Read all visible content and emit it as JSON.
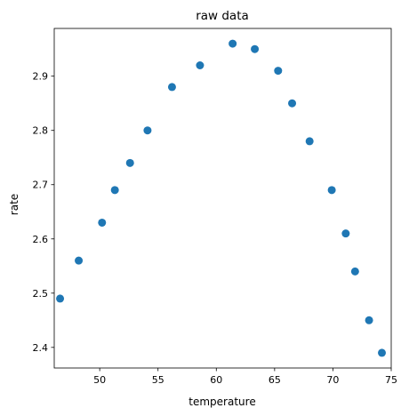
{
  "chart_data": {
    "type": "scatter",
    "title": "raw data",
    "xlabel": "temperature",
    "ylabel": "rate",
    "xlim": [
      46.1,
      75.0
    ],
    "ylim": [
      2.362,
      2.988
    ],
    "xticks": [
      50,
      55,
      60,
      65,
      70,
      75
    ],
    "yticks": [
      2.4,
      2.5,
      2.6,
      2.7,
      2.8,
      2.9
    ],
    "x_tick_labels": [
      "50",
      "55",
      "60",
      "65",
      "70",
      "75"
    ],
    "y_tick_labels": [
      "2.4",
      "2.5",
      "2.6",
      "2.7",
      "2.8",
      "2.9"
    ],
    "grid": false,
    "marker_color": "#1f77b4",
    "series": [
      {
        "x": [
          46.6,
          48.2,
          50.2,
          51.3,
          52.6,
          54.1,
          56.2,
          58.6,
          61.4,
          63.3,
          65.3,
          66.5,
          68.0,
          69.9,
          71.1,
          71.9,
          73.1,
          74.2
        ],
        "y": [
          2.49,
          2.56,
          2.63,
          2.69,
          2.74,
          2.8,
          2.88,
          2.92,
          2.96,
          2.95,
          2.91,
          2.85,
          2.78,
          2.69,
          2.61,
          2.54,
          2.45,
          2.39
        ]
      }
    ]
  }
}
